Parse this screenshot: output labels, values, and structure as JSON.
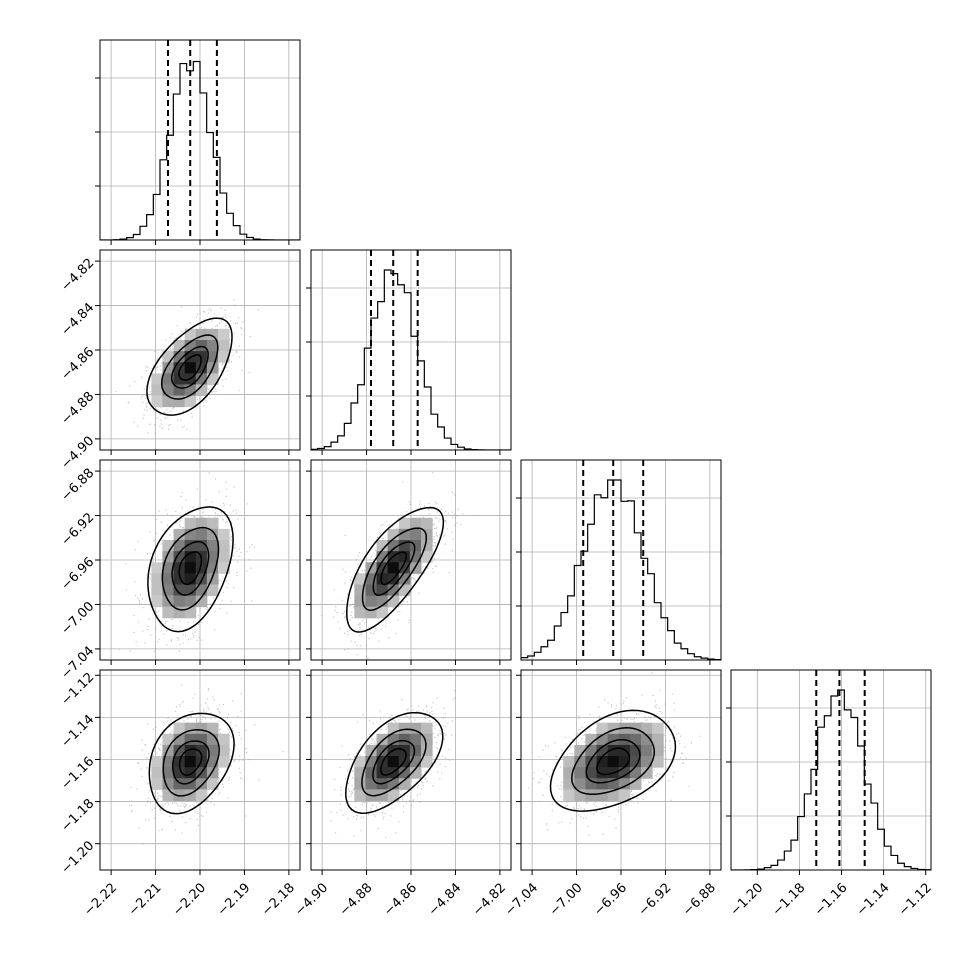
{
  "chart_data": {
    "type": "corner",
    "grid": true,
    "quantile_lines": "dashed",
    "colors": {
      "line": "#000000",
      "grid": "#b0b0b0",
      "scatter": "#9a9a9a",
      "frame": "#000000"
    },
    "params": [
      {
        "range": [
          -2.2225,
          -2.1775
        ],
        "median": -2.2022,
        "q16": -2.2072,
        "q84": -2.1962,
        "sigma": 0.0046,
        "ticks": [
          -2.22,
          -2.21,
          -2.2,
          -2.19,
          -2.18
        ],
        "tick_labels": [
          "−2.22",
          "−2.21",
          "−2.20",
          "−2.19",
          "−2.18"
        ]
      },
      {
        "range": [
          -4.905,
          -4.815
        ],
        "median": -4.868,
        "q16": -4.878,
        "q84": -4.857,
        "sigma": 0.0105,
        "ticks": [
          -4.9,
          -4.88,
          -4.86,
          -4.84,
          -4.82
        ],
        "tick_labels": [
          "−4.90",
          "−4.88",
          "−4.86",
          "−4.84",
          "−4.82"
        ]
      },
      {
        "range": [
          -7.05,
          -6.87
        ],
        "median": -6.967,
        "q16": -6.994,
        "q84": -6.94,
        "sigma": 0.027,
        "ticks": [
          -7.04,
          -7.0,
          -6.96,
          -6.92,
          -6.88
        ],
        "tick_labels": [
          "−7.04",
          "−7.00",
          "−6.96",
          "−6.92",
          "−6.88"
        ]
      },
      {
        "range": [
          -1.2125,
          -1.1175
        ],
        "median": -1.161,
        "q16": -1.172,
        "q84": -1.149,
        "sigma": 0.0115,
        "ticks": [
          -1.2,
          -1.18,
          -1.16,
          -1.14,
          -1.12
        ],
        "tick_labels": [
          "−1.20",
          "−1.18",
          "−1.16",
          "−1.14",
          "−1.12"
        ]
      }
    ],
    "correlations": {
      "1-0": 0.55,
      "2-0": 0.35,
      "2-1": 0.72,
      "3-0": 0.3,
      "3-1": 0.55,
      "3-2": 0.4
    },
    "contour_levels_sigma": [
      0.5,
      1.0,
      1.5,
      2.0
    ]
  }
}
